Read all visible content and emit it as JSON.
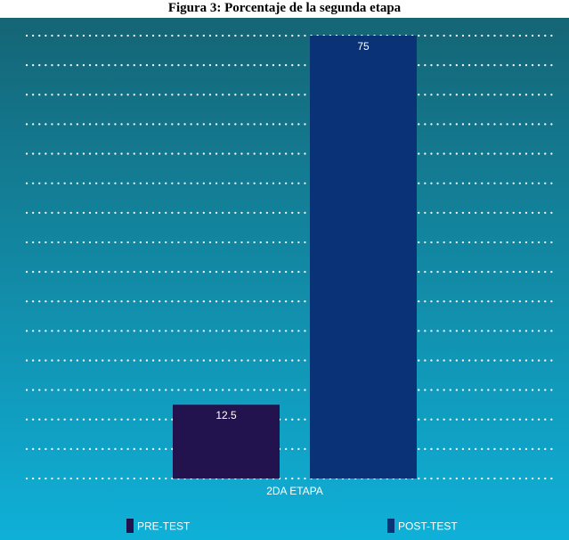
{
  "figure_title": "Figura 3: Porcentaje de la segunda etapa",
  "colors": {
    "background_top": "#156575",
    "background_bottom": "#0fb0d8",
    "grid": "#ffffff",
    "text": "#ffffff"
  },
  "chart_data": {
    "type": "bar",
    "title": "",
    "xlabel": "",
    "ylabel": "",
    "categories": [
      "2DA ETAPA"
    ],
    "series": [
      {
        "name": "PRE-TEST",
        "values": [
          12.5
        ],
        "labels": [
          "12.5"
        ],
        "color": "#22134f"
      },
      {
        "name": "POST-TEST",
        "values": [
          75
        ],
        "labels": [
          "75"
        ],
        "color": "#0a3276"
      }
    ],
    "ylim": [
      0,
      75
    ],
    "grid": true,
    "grid_style": "dotted",
    "legend_position": "bottom"
  }
}
